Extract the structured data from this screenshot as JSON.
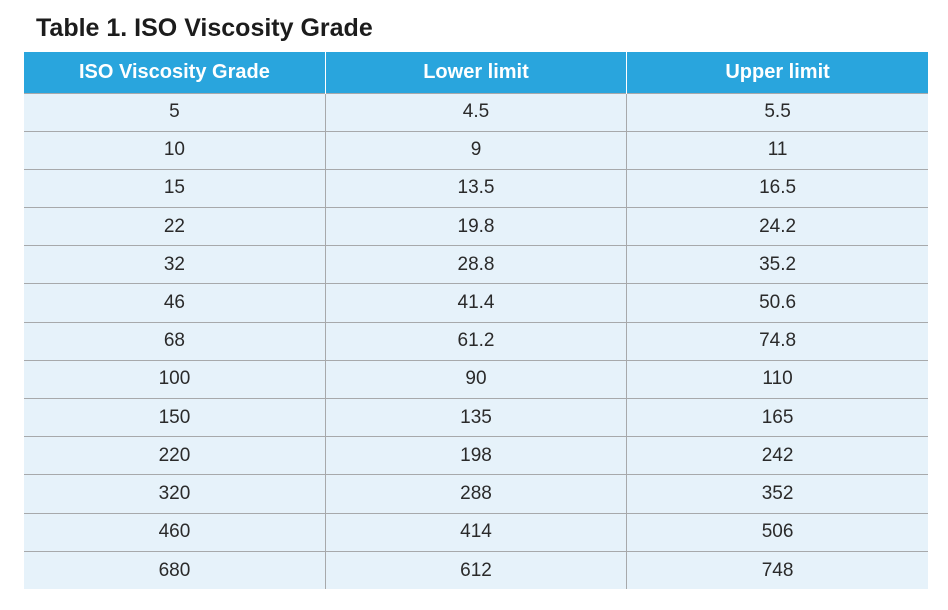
{
  "title": "Table 1. ISO Viscosity Grade",
  "colors": {
    "header_bg": "#29a5dd",
    "header_text": "#ffffff",
    "row_bg": "#e6f2fa",
    "grid_line": "#a7a9ab"
  },
  "table": {
    "headers": [
      "ISO Viscosity Grade",
      "Lower limit",
      "Upper limit"
    ],
    "rows": [
      [
        "5",
        "4.5",
        "5.5"
      ],
      [
        "10",
        "9",
        "11"
      ],
      [
        "15",
        "13.5",
        "16.5"
      ],
      [
        "22",
        "19.8",
        "24.2"
      ],
      [
        "32",
        "28.8",
        "35.2"
      ],
      [
        "46",
        "41.4",
        "50.6"
      ],
      [
        "68",
        "61.2",
        "74.8"
      ],
      [
        "100",
        "90",
        "110"
      ],
      [
        "150",
        "135",
        "165"
      ],
      [
        "220",
        "198",
        "242"
      ],
      [
        "320",
        "288",
        "352"
      ],
      [
        "460",
        "414",
        "506"
      ],
      [
        "680",
        "612",
        "748"
      ]
    ]
  }
}
